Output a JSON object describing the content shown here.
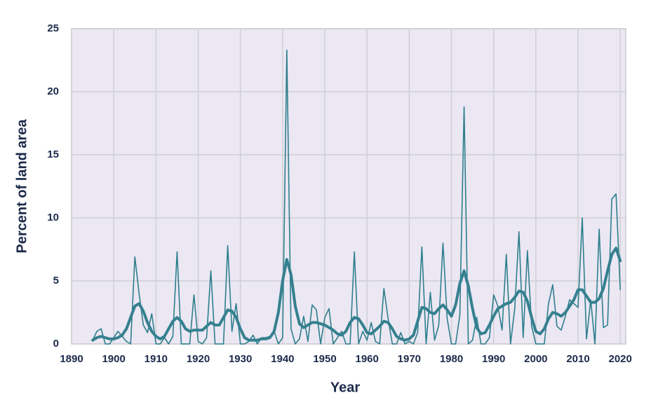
{
  "chart_data": {
    "type": "line",
    "x_label": "Year",
    "y_label": "Percent of land area",
    "x": [
      1895,
      1896,
      1897,
      1898,
      1899,
      1900,
      1901,
      1902,
      1903,
      1904,
      1905,
      1906,
      1907,
      1908,
      1909,
      1910,
      1911,
      1912,
      1913,
      1914,
      1915,
      1916,
      1917,
      1918,
      1919,
      1920,
      1921,
      1922,
      1923,
      1924,
      1925,
      1926,
      1927,
      1928,
      1929,
      1930,
      1931,
      1932,
      1933,
      1934,
      1935,
      1936,
      1937,
      1938,
      1939,
      1940,
      1941,
      1942,
      1943,
      1944,
      1945,
      1946,
      1947,
      1948,
      1949,
      1950,
      1951,
      1952,
      1953,
      1954,
      1955,
      1956,
      1957,
      1958,
      1959,
      1960,
      1961,
      1962,
      1963,
      1964,
      1965,
      1966,
      1967,
      1968,
      1969,
      1970,
      1971,
      1972,
      1973,
      1974,
      1975,
      1976,
      1977,
      1978,
      1979,
      1980,
      1981,
      1982,
      1983,
      1984,
      1985,
      1986,
      1987,
      1988,
      1989,
      1990,
      1991,
      1992,
      1993,
      1994,
      1995,
      1996,
      1997,
      1998,
      1999,
      2000,
      2001,
      2002,
      2003,
      2004,
      2005,
      2006,
      2007,
      2008,
      2009,
      2010,
      2011,
      2012,
      2013,
      2014,
      2015,
      2016,
      2017,
      2018,
      2019,
      2020
    ],
    "series": [
      {
        "color": "#2e7f8c",
        "width": 1.6,
        "values": [
          0.3,
          1.0,
          1.2,
          0.0,
          0.0,
          0.5,
          1.0,
          0.6,
          0.2,
          0.0,
          6.9,
          4.0,
          1.5,
          0.9,
          2.4,
          0.0,
          0.0,
          0.5,
          0.0,
          0.6,
          7.3,
          0.0,
          0.0,
          0.0,
          3.9,
          0.2,
          0.0,
          0.5,
          5.8,
          0.0,
          0.0,
          0.0,
          7.8,
          1.0,
          3.2,
          0.0,
          0.0,
          0.2,
          0.7,
          0.0,
          0.5,
          0.5,
          0.6,
          1.0,
          0.0,
          0.5,
          23.3,
          1.2,
          0.0,
          0.4,
          2.2,
          0.2,
          3.1,
          2.7,
          0.0,
          2.1,
          2.8,
          0.0,
          0.5,
          1.0,
          0.0,
          0.0,
          7.3,
          0.0,
          1.0,
          0.3,
          1.7,
          0.2,
          0.0,
          4.4,
          2.0,
          0.0,
          0.0,
          0.9,
          0.0,
          0.2,
          0.0,
          0.9,
          7.7,
          0.0,
          4.1,
          0.3,
          1.5,
          8.0,
          2.0,
          0.0,
          0.0,
          2.3,
          18.8,
          0.0,
          0.3,
          2.1,
          0.0,
          0.0,
          0.5,
          3.9,
          3.0,
          1.1,
          7.1,
          0.0,
          2.8,
          8.9,
          0.5,
          7.4,
          1.4,
          0.0,
          0.0,
          0.0,
          3.2,
          4.7,
          1.4,
          1.1,
          2.2,
          3.5,
          3.2,
          2.9,
          10.0,
          0.4,
          3.5,
          0.0,
          9.1,
          1.3,
          1.5,
          11.5,
          11.9,
          4.3
        ]
      },
      {
        "color": "#35808f",
        "width": 4,
        "values": [
          0.3,
          0.5,
          0.6,
          0.5,
          0.4,
          0.4,
          0.5,
          0.7,
          1.2,
          2.1,
          3.0,
          3.2,
          2.6,
          1.7,
          1.0,
          0.6,
          0.4,
          0.6,
          1.2,
          1.8,
          2.1,
          1.8,
          1.2,
          1.0,
          1.1,
          1.1,
          1.1,
          1.4,
          1.7,
          1.5,
          1.5,
          2.1,
          2.7,
          2.6,
          2.1,
          1.2,
          0.5,
          0.3,
          0.3,
          0.3,
          0.4,
          0.4,
          0.5,
          1.0,
          2.5,
          5.0,
          6.7,
          5.5,
          3.0,
          1.6,
          1.3,
          1.5,
          1.7,
          1.7,
          1.6,
          1.5,
          1.3,
          1.1,
          0.8,
          0.7,
          1.0,
          1.7,
          2.1,
          2.0,
          1.5,
          0.9,
          0.8,
          1.1,
          1.4,
          1.8,
          1.7,
          1.2,
          0.6,
          0.4,
          0.3,
          0.4,
          0.7,
          1.8,
          2.9,
          2.8,
          2.5,
          2.4,
          2.8,
          3.1,
          2.7,
          2.2,
          3.1,
          4.8,
          5.8,
          4.6,
          2.8,
          1.3,
          0.8,
          0.9,
          1.5,
          2.2,
          2.8,
          3.0,
          3.2,
          3.3,
          3.7,
          4.2,
          4.1,
          3.4,
          2.1,
          1.0,
          0.8,
          1.2,
          2.0,
          2.5,
          2.4,
          2.2,
          2.5,
          3.0,
          3.5,
          4.3,
          4.3,
          3.8,
          3.3,
          3.3,
          3.6,
          4.4,
          5.8,
          7.1,
          7.6,
          6.6
        ]
      }
    ],
    "xlim": [
      1890,
      2021.3
    ],
    "xticks": [
      1890,
      1900,
      1910,
      1920,
      1930,
      1940,
      1950,
      1960,
      1970,
      1980,
      1990,
      2000,
      2010,
      2020
    ],
    "ylim": [
      0,
      25
    ],
    "yticks": [
      0,
      5,
      10,
      15,
      20,
      25
    ],
    "grid": true,
    "background": "#ebe7f3"
  }
}
